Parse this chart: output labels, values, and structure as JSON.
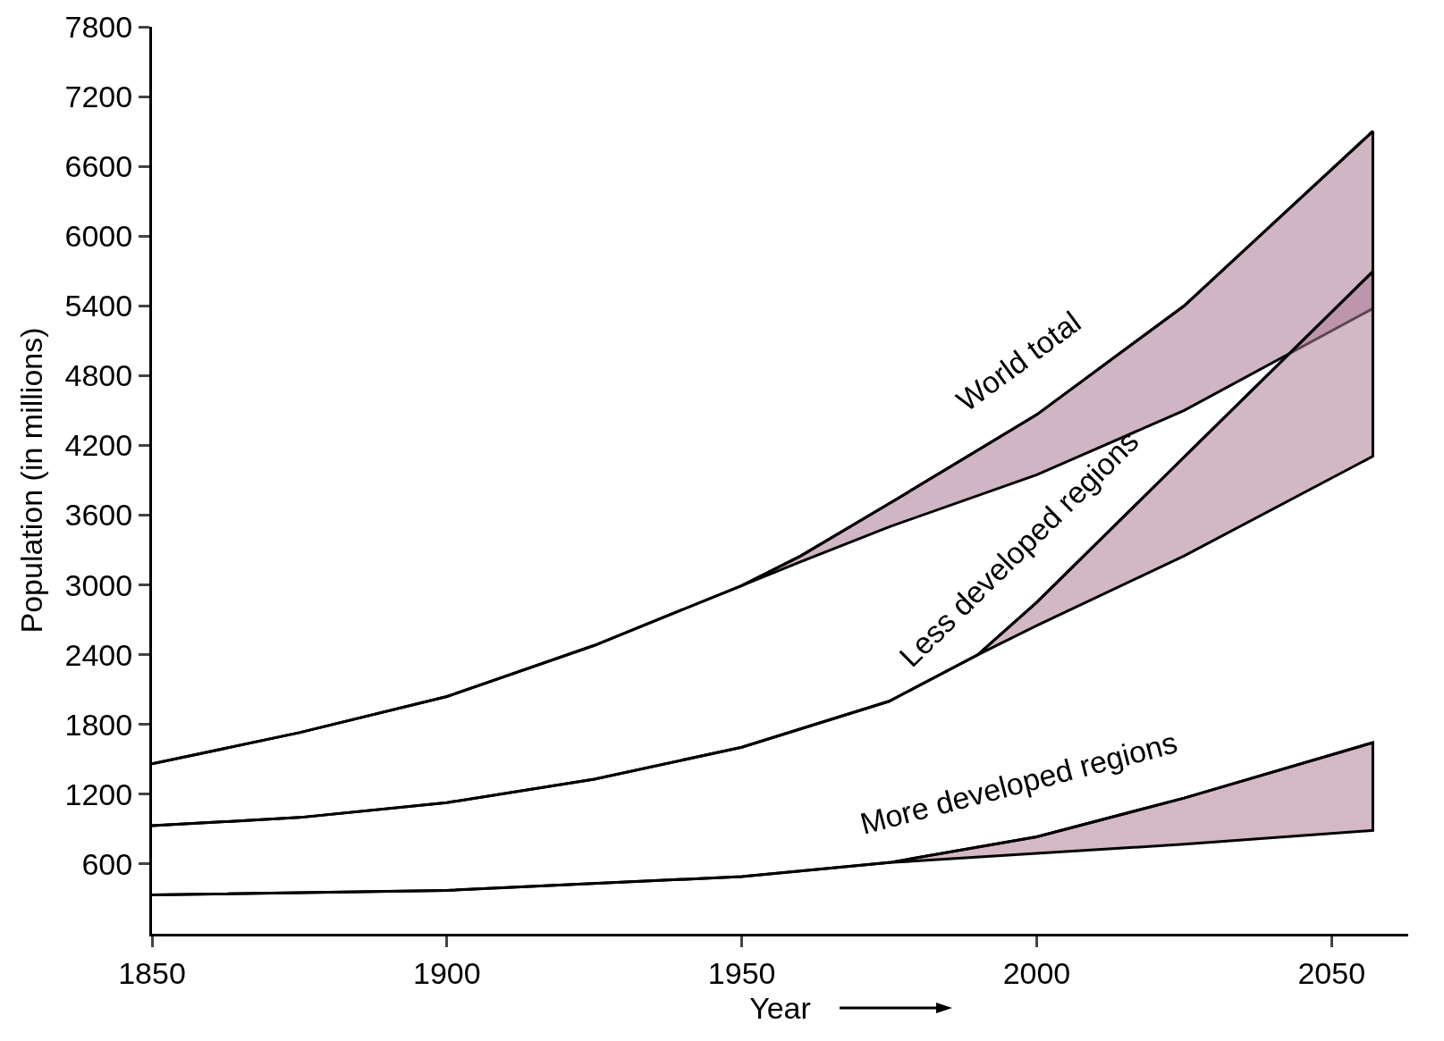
{
  "chart_data": {
    "type": "line",
    "xlabel": "Year",
    "ylabel": "Population (in millions)",
    "xlim": [
      1850,
      2063
    ],
    "xticks": [
      1850,
      1900,
      1950,
      2000,
      2050
    ],
    "ylim": [
      0,
      7800
    ],
    "yticks": [
      600,
      1200,
      1800,
      2400,
      3000,
      3600,
      4200,
      4800,
      5400,
      6000,
      6600,
      7200,
      7800
    ],
    "grid": false,
    "legend": false,
    "marker": "none",
    "line_style": "solid",
    "series": [
      {
        "name": "World total",
        "color": "#000000",
        "x": [
          1850,
          1875,
          1900,
          1925,
          1950,
          1960,
          1975,
          2000,
          2025,
          2057
        ],
        "values": [
          1461,
          1730,
          2040,
          2480,
          2995,
          3250,
          3700,
          4464,
          5400,
          6902
        ],
        "lower": [
          1461,
          1730,
          2040,
          2480,
          2995,
          3200,
          3500,
          3947,
          4500,
          5377
        ],
        "upper": [
          1461,
          1730,
          2040,
          2480,
          2995,
          3250,
          3700,
          4464,
          5400,
          6902
        ]
      },
      {
        "name": "Less developed regions",
        "color": "#000000",
        "x": [
          1850,
          1875,
          1900,
          1925,
          1950,
          1975,
          1990,
          2000,
          2025,
          2057
        ],
        "values": [
          929,
          1000,
          1128,
          1330,
          1604,
          2000,
          2399,
          2850,
          4100,
          5695
        ],
        "lower": [
          929,
          1000,
          1128,
          1330,
          1604,
          2000,
          2399,
          2650,
          3250,
          4106
        ],
        "upper": [
          929,
          1000,
          1128,
          1330,
          1604,
          2000,
          2399,
          2850,
          4100,
          5695
        ]
      },
      {
        "name": "More developed regions",
        "color": "#000000",
        "x": [
          1850,
          1900,
          1950,
          1975,
          2000,
          2025,
          2057
        ],
        "values": [
          334,
          373,
          492,
          612,
          834,
          1167,
          1644
        ],
        "lower": [
          334,
          373,
          492,
          612,
          691,
          770,
          889
        ],
        "upper": [
          334,
          373,
          492,
          612,
          834,
          1167,
          1644
        ]
      }
    ]
  }
}
